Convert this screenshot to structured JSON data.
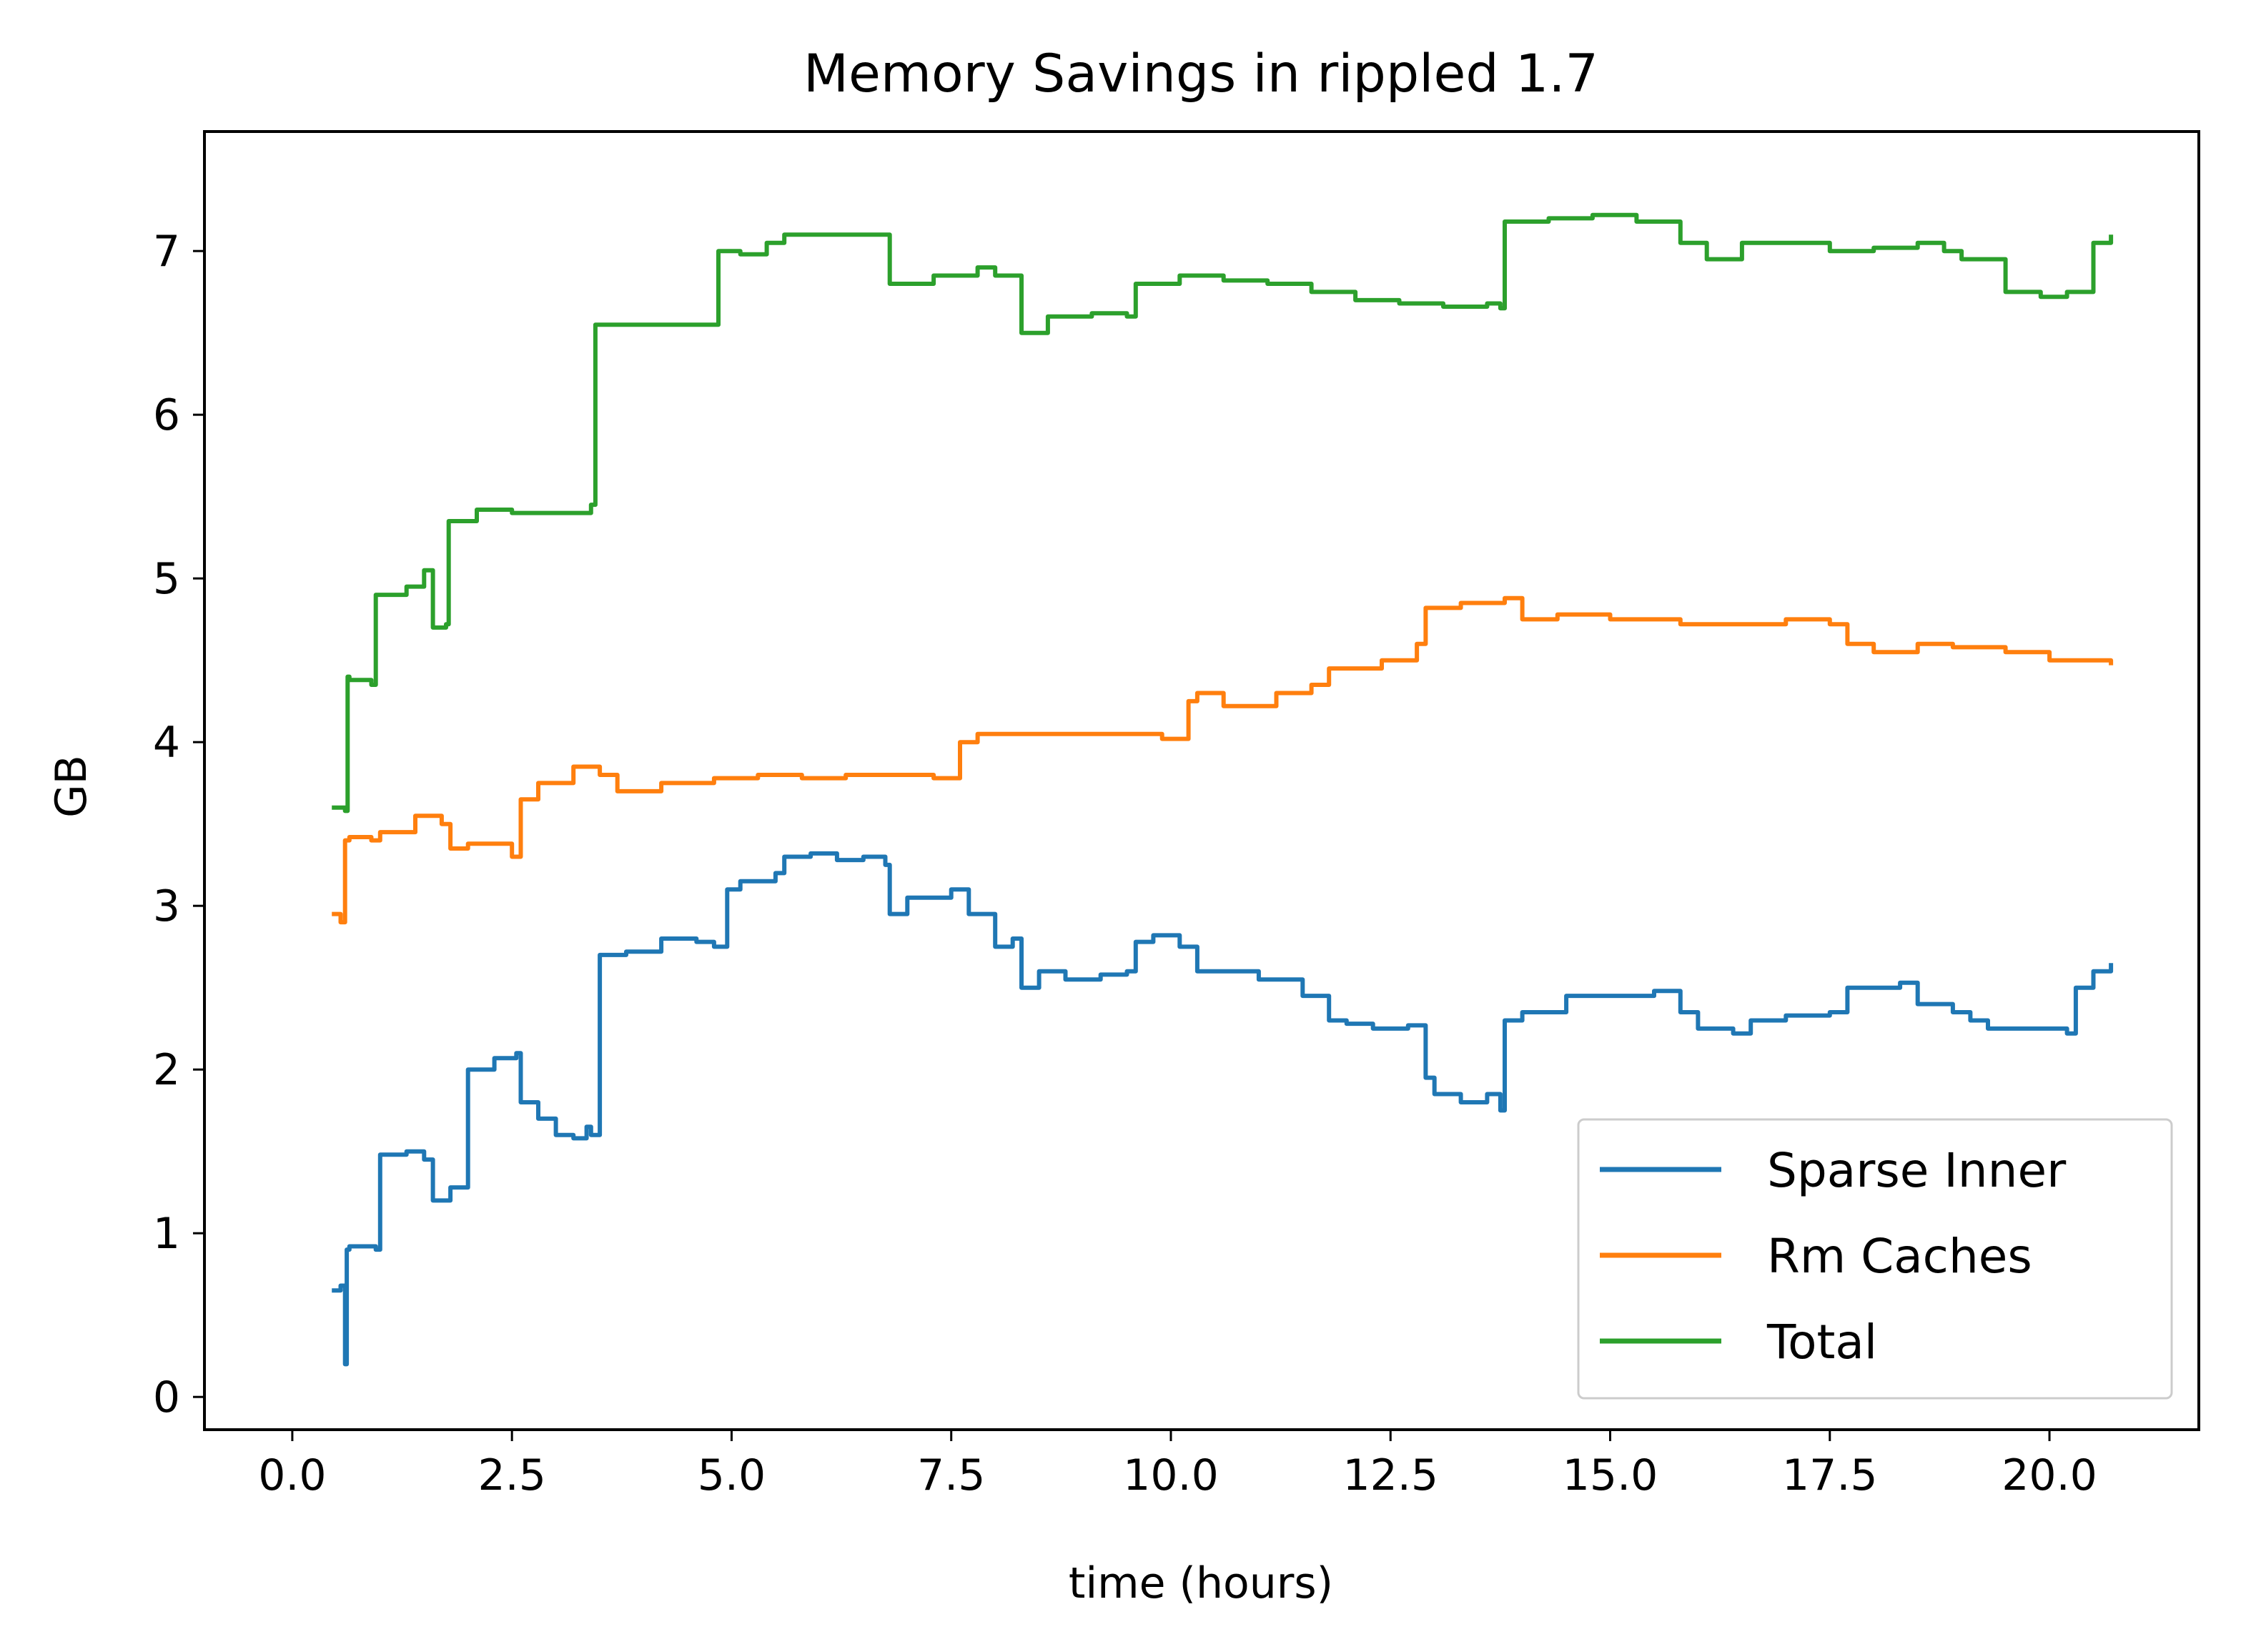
{
  "chart_data": {
    "type": "line",
    "title": "Memory Savings in rippled 1.7",
    "xlabel": "time (hours)",
    "ylabel": "GB",
    "xlim": [
      -1.0,
      21.7
    ],
    "ylim": [
      -0.2,
      7.73
    ],
    "xticks": [
      0,
      2.5,
      5,
      7.5,
      10,
      12.5,
      15,
      17.5,
      20
    ],
    "xtick_labels": [
      "0.0",
      "2.5",
      "5.0",
      "7.5",
      "10.0",
      "12.5",
      "15.0",
      "17.5",
      "20.0"
    ],
    "yticks": [
      0,
      1,
      2,
      3,
      4,
      5,
      6,
      7
    ],
    "ytick_labels": [
      "0",
      "1",
      "2",
      "3",
      "4",
      "5",
      "6",
      "7"
    ],
    "grid": false,
    "legend_position": "lower-right",
    "series": [
      {
        "name": "Sparse Inner",
        "color": "#1f77b4",
        "x": [
          0.45,
          0.55,
          0.6,
          0.62,
          0.65,
          0.95,
          1.0,
          1.3,
          1.5,
          1.6,
          1.75,
          1.8,
          2.0,
          2.3,
          2.55,
          2.6,
          2.8,
          3.0,
          3.2,
          3.35,
          3.4,
          3.5,
          3.8,
          4.2,
          4.6,
          4.8,
          4.95,
          5.1,
          5.5,
          5.6,
          5.9,
          6.2,
          6.5,
          6.75,
          6.8,
          7.0,
          7.5,
          7.7,
          8.0,
          8.2,
          8.3,
          8.5,
          8.8,
          9.2,
          9.5,
          9.6,
          9.8,
          10.1,
          10.3,
          10.6,
          11.0,
          11.5,
          11.8,
          12.0,
          12.3,
          12.7,
          12.9,
          13.0,
          13.3,
          13.6,
          13.75,
          13.8,
          14.0,
          14.5,
          15.0,
          15.5,
          15.8,
          16.0,
          16.4,
          16.6,
          17.0,
          17.5,
          17.7,
          18.3,
          18.5,
          18.9,
          19.1,
          19.3,
          19.6,
          20.0,
          20.2,
          20.3,
          20.5,
          20.7
        ],
        "y": [
          0.65,
          0.68,
          0.2,
          0.9,
          0.92,
          0.9,
          1.48,
          1.5,
          1.45,
          1.2,
          1.2,
          1.28,
          2.0,
          2.07,
          2.1,
          1.8,
          1.7,
          1.6,
          1.58,
          1.65,
          1.6,
          2.7,
          2.72,
          2.8,
          2.78,
          2.75,
          3.1,
          3.15,
          3.2,
          3.3,
          3.32,
          3.28,
          3.3,
          3.25,
          2.95,
          3.05,
          3.1,
          2.95,
          2.75,
          2.8,
          2.5,
          2.6,
          2.55,
          2.58,
          2.6,
          2.78,
          2.82,
          2.75,
          2.6,
          2.6,
          2.55,
          2.45,
          2.3,
          2.28,
          2.25,
          2.27,
          1.95,
          1.85,
          1.8,
          1.85,
          1.75,
          2.3,
          2.35,
          2.45,
          2.45,
          2.48,
          2.35,
          2.25,
          2.22,
          2.3,
          2.33,
          2.35,
          2.5,
          2.53,
          2.4,
          2.35,
          2.3,
          2.25,
          2.25,
          2.25,
          2.22,
          2.5,
          2.6,
          2.65
        ]
      },
      {
        "name": "Rm Caches",
        "color": "#ff7f0e",
        "x": [
          0.45,
          0.55,
          0.6,
          0.65,
          0.9,
          1.0,
          1.4,
          1.7,
          1.8,
          2.0,
          2.5,
          2.6,
          2.8,
          3.2,
          3.5,
          3.7,
          4.2,
          4.8,
          5.3,
          5.8,
          6.3,
          6.8,
          7.3,
          7.6,
          7.8,
          8.4,
          8.9,
          9.3,
          9.9,
          10.2,
          10.3,
          10.6,
          11.2,
          11.6,
          11.8,
          12.4,
          12.8,
          12.9,
          13.3,
          13.8,
          14.0,
          14.4,
          15.0,
          15.8,
          16.5,
          17.0,
          17.5,
          17.7,
          18.0,
          18.5,
          18.9,
          19.5,
          20.0,
          20.5,
          20.7
        ],
        "y": [
          2.95,
          2.9,
          3.4,
          3.42,
          3.4,
          3.45,
          3.55,
          3.5,
          3.35,
          3.38,
          3.3,
          3.65,
          3.75,
          3.85,
          3.8,
          3.7,
          3.75,
          3.78,
          3.8,
          3.78,
          3.8,
          3.8,
          3.78,
          4.0,
          4.05,
          4.05,
          4.05,
          4.05,
          4.02,
          4.25,
          4.3,
          4.22,
          4.3,
          4.35,
          4.45,
          4.5,
          4.6,
          4.82,
          4.85,
          4.88,
          4.75,
          4.78,
          4.75,
          4.72,
          4.72,
          4.75,
          4.72,
          4.6,
          4.55,
          4.6,
          4.58,
          4.55,
          4.5,
          4.5,
          4.47
        ]
      },
      {
        "name": "Total",
        "color": "#2ca02c",
        "x": [
          0.45,
          0.6,
          0.63,
          0.65,
          0.9,
          0.95,
          1.3,
          1.5,
          1.6,
          1.75,
          1.78,
          2.1,
          2.5,
          3.0,
          3.4,
          3.45,
          3.8,
          4.2,
          4.6,
          4.8,
          4.85,
          5.1,
          5.4,
          5.6,
          5.8,
          6.3,
          6.75,
          6.8,
          7.3,
          7.8,
          8.0,
          8.3,
          8.6,
          9.1,
          9.5,
          9.6,
          10.1,
          10.6,
          11.1,
          11.6,
          12.1,
          12.6,
          13.1,
          13.6,
          13.75,
          13.8,
          14.3,
          14.8,
          15.3,
          15.8,
          16.1,
          16.5,
          17.0,
          17.5,
          18.0,
          18.5,
          18.8,
          19.0,
          19.5,
          19.9,
          20.2,
          20.5,
          20.7
        ],
        "y": [
          3.6,
          3.58,
          4.4,
          4.38,
          4.35,
          4.9,
          4.95,
          5.05,
          4.7,
          4.72,
          5.35,
          5.42,
          5.4,
          5.4,
          5.45,
          6.55,
          6.55,
          6.55,
          6.55,
          6.55,
          7.0,
          6.98,
          7.05,
          7.1,
          7.1,
          7.1,
          7.1,
          6.8,
          6.85,
          6.9,
          6.85,
          6.5,
          6.6,
          6.62,
          6.6,
          6.8,
          6.85,
          6.82,
          6.8,
          6.75,
          6.7,
          6.68,
          6.66,
          6.68,
          6.65,
          7.18,
          7.2,
          7.22,
          7.18,
          7.05,
          6.95,
          7.05,
          7.05,
          7.0,
          7.02,
          7.05,
          7.0,
          6.95,
          6.75,
          6.72,
          6.75,
          7.05,
          7.1
        ]
      }
    ]
  }
}
